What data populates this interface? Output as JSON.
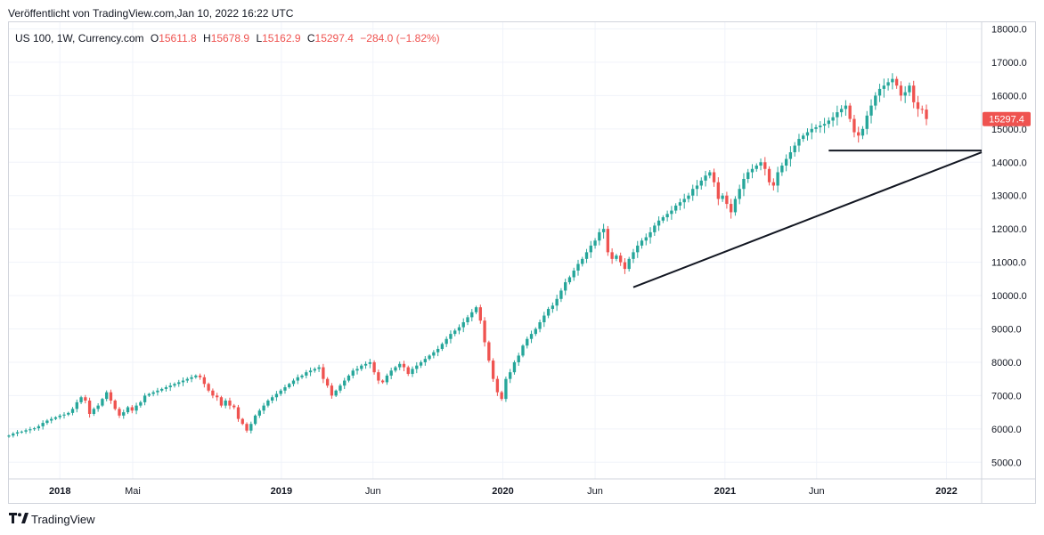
{
  "header": {
    "published": "Veröffentlicht von TradingView.com,Jan 10, 2022 16:22 UTC"
  },
  "legend": {
    "symbol": "US 100, 1W, Currency.com",
    "o_label": "O",
    "o_value": "15611.8",
    "h_label": "H",
    "h_value": "15678.9",
    "l_label": "L",
    "l_value": "15162.9",
    "c_label": "C",
    "c_value": "15297.4",
    "change": "−284.0 (−1.82%)"
  },
  "footer": {
    "brand": "TradingView",
    "logo_icon": "tradingview-logo-icon"
  },
  "colors": {
    "up": "#26a69a",
    "down": "#ef5350",
    "grid": "#f0f3fa",
    "axis_text": "#131722",
    "price_label_bg": "#ef5350"
  },
  "chart_data": {
    "type": "candlestick",
    "title": "US 100, 1W, Currency.com",
    "interval": "1W",
    "last_price": "15297.4",
    "y_axis": {
      "position": "right",
      "ylim": [
        4500,
        18200
      ],
      "ticks": [
        "18000.0",
        "17000.0",
        "16000.0",
        "15000.0",
        "14000.0",
        "13000.0",
        "12000.0",
        "11000.0",
        "10000.0",
        "9000.0",
        "8000.0",
        "7000.0",
        "6000.0",
        "5000.0"
      ]
    },
    "x_axis": {
      "start": "2017-10-09",
      "end": "2022-02-28",
      "ticks": [
        {
          "label": "2018",
          "date": "2018-01-01",
          "bold": true
        },
        {
          "label": "Mai",
          "date": "2018-05-01",
          "bold": false
        },
        {
          "label": "2019",
          "date": "2019-01-01",
          "bold": true
        },
        {
          "label": "Jun",
          "date": "2019-06-01",
          "bold": false
        },
        {
          "label": "2020",
          "date": "2020-01-01",
          "bold": true
        },
        {
          "label": "Jun",
          "date": "2020-06-01",
          "bold": false
        },
        {
          "label": "2021",
          "date": "2021-01-01",
          "bold": true
        },
        {
          "label": "Jun",
          "date": "2021-06-01",
          "bold": false
        },
        {
          "label": "2022",
          "date": "2022-01-01",
          "bold": true
        }
      ]
    },
    "grid": true,
    "candle_start_date": "2017-10-09",
    "closes_approx": [
      5800,
      5860,
      5900,
      5920,
      5960,
      5990,
      6020,
      6080,
      6180,
      6250,
      6300,
      6350,
      6400,
      6430,
      6480,
      6600,
      6800,
      6950,
      6850,
      6450,
      6600,
      6700,
      6900,
      7100,
      6850,
      6600,
      6400,
      6500,
      6650,
      6550,
      6700,
      6800,
      7000,
      7050,
      7100,
      7150,
      7200,
      7250,
      7300,
      7350,
      7400,
      7450,
      7500,
      7550,
      7600,
      7550,
      7350,
      7150,
      7000,
      6950,
      6700,
      6850,
      6700,
      6650,
      6300,
      6150,
      5950,
      6150,
      6400,
      6550,
      6700,
      6850,
      6950,
      7050,
      7150,
      7250,
      7350,
      7450,
      7550,
      7600,
      7700,
      7750,
      7800,
      7850,
      7500,
      7300,
      7000,
      7150,
      7300,
      7450,
      7600,
      7750,
      7800,
      7900,
      7950,
      8000,
      7700,
      7450,
      7400,
      7600,
      7750,
      7850,
      7950,
      7850,
      7650,
      7800,
      7900,
      8000,
      8100,
      8200,
      8300,
      8400,
      8550,
      8700,
      8850,
      8950,
      9050,
      9200,
      9350,
      9500,
      9650,
      9250,
      8600,
      8050,
      7500,
      7100,
      6900,
      7500,
      7700,
      8000,
      8200,
      8500,
      8700,
      8850,
      9000,
      9200,
      9400,
      9600,
      9700,
      9900,
      10150,
      10400,
      10550,
      10750,
      10950,
      11100,
      11300,
      11500,
      11650,
      11900,
      12000,
      11300,
      11100,
      11200,
      11000,
      10800,
      11100,
      11300,
      11500,
      11650,
      11750,
      11900,
      12100,
      12250,
      12350,
      12450,
      12550,
      12700,
      12800,
      12900,
      13000,
      13200,
      13300,
      13450,
      13600,
      13700,
      13400,
      12900,
      13000,
      12750,
      12500,
      12900,
      13200,
      13500,
      13700,
      13800,
      13900,
      14000,
      13800,
      13400,
      13300,
      13700,
      13900,
      14100,
      14300,
      14500,
      14700,
      14800,
      14900,
      15000,
      15050,
      15100,
      15150,
      15250,
      15350,
      15500,
      15600,
      15700,
      15300,
      14900,
      14800,
      15000,
      15400,
      15700,
      16000,
      16200,
      16300,
      16400,
      16500,
      16300,
      16000,
      16100,
      16300,
      15800,
      15600,
      15581,
      15297.4
    ],
    "drawings": [
      {
        "type": "trendline",
        "from": [
          "2020-08-03",
          10250
        ],
        "to": [
          "2022-02-28",
          14300
        ]
      },
      {
        "type": "horizontal",
        "from": [
          "2021-06-21",
          14350
        ],
        "to": [
          "2022-02-28",
          14350
        ]
      }
    ]
  }
}
